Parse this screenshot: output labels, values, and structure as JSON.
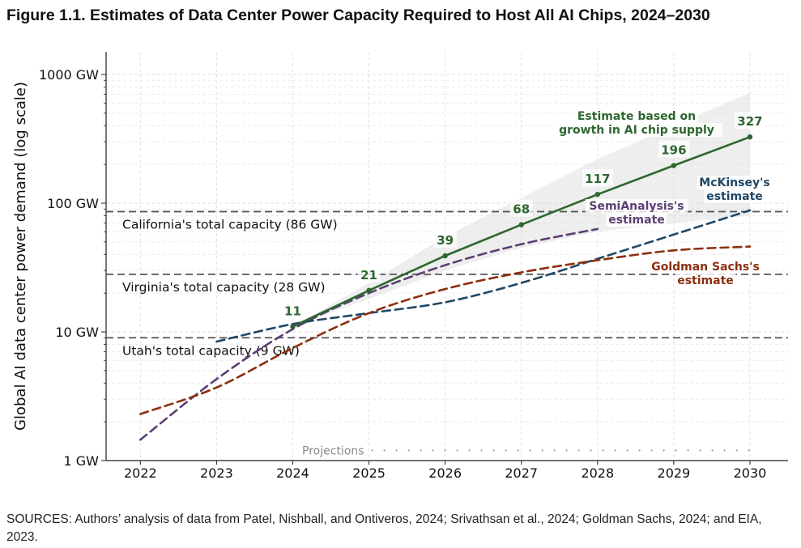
{
  "figure": {
    "title": "Figure 1.1. Estimates of Data Center Power Capacity Required to Host All AI Chips, 2024–2030",
    "source": "SOURCES: Authors’ analysis of data from Patel, Nishball, and Ontiveros, 2024; Srivathsan et al., 2024; Goldman Sachs, 2024; and EIA, 2023."
  },
  "chart_data": {
    "type": "line",
    "title": "Figure 1.1. Estimates of Data Center Power Capacity Required to Host All AI Chips, 2024–2030",
    "xlabel": "",
    "ylabel": "Global AI data center power demand (log scale)",
    "yscale": "log",
    "xlim": [
      2021.55,
      2030.5
    ],
    "ylim": [
      1,
      1500
    ],
    "x_ticks": [
      "2022",
      "2023",
      "2024",
      "2025",
      "2026",
      "2027",
      "2028",
      "2029",
      "2030"
    ],
    "y_ticks": [
      {
        "value": 1,
        "label": "1 GW"
      },
      {
        "value": 10,
        "label": "10 GW"
      },
      {
        "value": 100,
        "label": "100 GW"
      },
      {
        "value": 1000,
        "label": "1000 GW"
      }
    ],
    "grid": true,
    "series": [
      {
        "name": "Estimate based on growth in AI chip supply",
        "label_lines": [
          "Estimate based on",
          "growth in AI chip supply"
        ],
        "color": "#2e6630",
        "style": "solid",
        "x": [
          2024,
          2025,
          2026,
          2027,
          2028,
          2029,
          2030
        ],
        "values": [
          11,
          21,
          39,
          68,
          117,
          196,
          327
        ],
        "data_labels": [
          "11",
          "21",
          "39",
          "68",
          "117",
          "196",
          "327"
        ],
        "band_upper": [
          11,
          24,
          55,
          110,
          220,
          400,
          720
        ],
        "band_lower": [
          11,
          18,
          30,
          45,
          60,
          70,
          80
        ]
      },
      {
        "name": "SemiAnalysis's estimate",
        "label_lines": [
          "SemiAnalysis's",
          "estimate"
        ],
        "color": "#5b3f74",
        "style": "dashed",
        "x": [
          2022,
          2023,
          2024,
          2025,
          2026,
          2027,
          2028
        ],
        "values": [
          1.45,
          4.3,
          10.5,
          20,
          33,
          48,
          63
        ]
      },
      {
        "name": "McKinsey's estimate",
        "label_lines": [
          "McKinsey's",
          "estimate"
        ],
        "color": "#1f4766",
        "style": "dashed",
        "x": [
          2023,
          2024,
          2025,
          2026,
          2027,
          2028,
          2029,
          2030
        ],
        "values": [
          8.4,
          11.5,
          14,
          17,
          24,
          37,
          57,
          88
        ]
      },
      {
        "name": "Goldman Sachs's estimate",
        "label_lines": [
          "Goldman Sachs's",
          "estimate"
        ],
        "color": "#8c2f10",
        "style": "dashed",
        "x": [
          2022,
          2023,
          2024,
          2025,
          2026,
          2027,
          2028,
          2029,
          2030
        ],
        "values": [
          2.3,
          3.7,
          7.5,
          14,
          21.5,
          29,
          36,
          43,
          46
        ]
      }
    ],
    "reference_lines": [
      {
        "value": 86,
        "label": "California's total capacity (86 GW)"
      },
      {
        "value": 28,
        "label": "Virginia's total capacity (28 GW)"
      },
      {
        "value": 9,
        "label": "Utah's total capacity (9 GW)"
      }
    ],
    "annotations": [
      {
        "text": "Projections",
        "x_start": 2025.0,
        "x_end": 2030,
        "y": 1.2
      }
    ]
  }
}
